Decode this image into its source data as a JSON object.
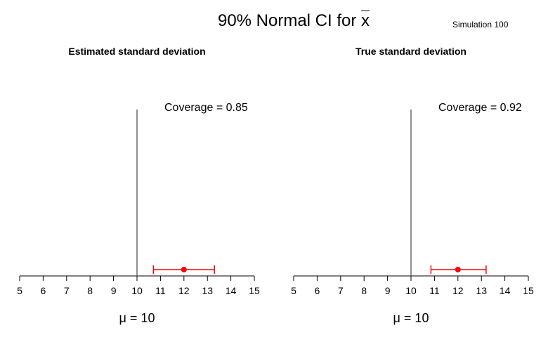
{
  "figure": {
    "title_prefix": "90% Normal CI for ",
    "title_symbol": "x",
    "simulation_label": "Simulation 100"
  },
  "chart_data": [
    {
      "type": "scatter",
      "title": "Estimated standard deviation",
      "coverage_text": "Coverage = 0.85",
      "mu_text": "μ = 10",
      "xlim": [
        5,
        15
      ],
      "x_ticks": [
        5,
        6,
        7,
        8,
        9,
        10,
        11,
        12,
        13,
        14,
        15
      ],
      "reference_line_x": 10,
      "interval": {
        "lower": 10.7,
        "estimate": 12.0,
        "upper": 13.3
      },
      "interval_color": "#ff0000",
      "grid": false
    },
    {
      "type": "scatter",
      "title": "True standard deviation",
      "coverage_text": "Coverage = 0.92",
      "mu_text": "μ = 10",
      "xlim": [
        5,
        15
      ],
      "x_ticks": [
        5,
        6,
        7,
        8,
        9,
        10,
        11,
        12,
        13,
        14,
        15
      ],
      "reference_line_x": 10,
      "interval": {
        "lower": 10.85,
        "estimate": 12.0,
        "upper": 13.2
      },
      "interval_color": "#ff0000",
      "grid": false
    }
  ]
}
